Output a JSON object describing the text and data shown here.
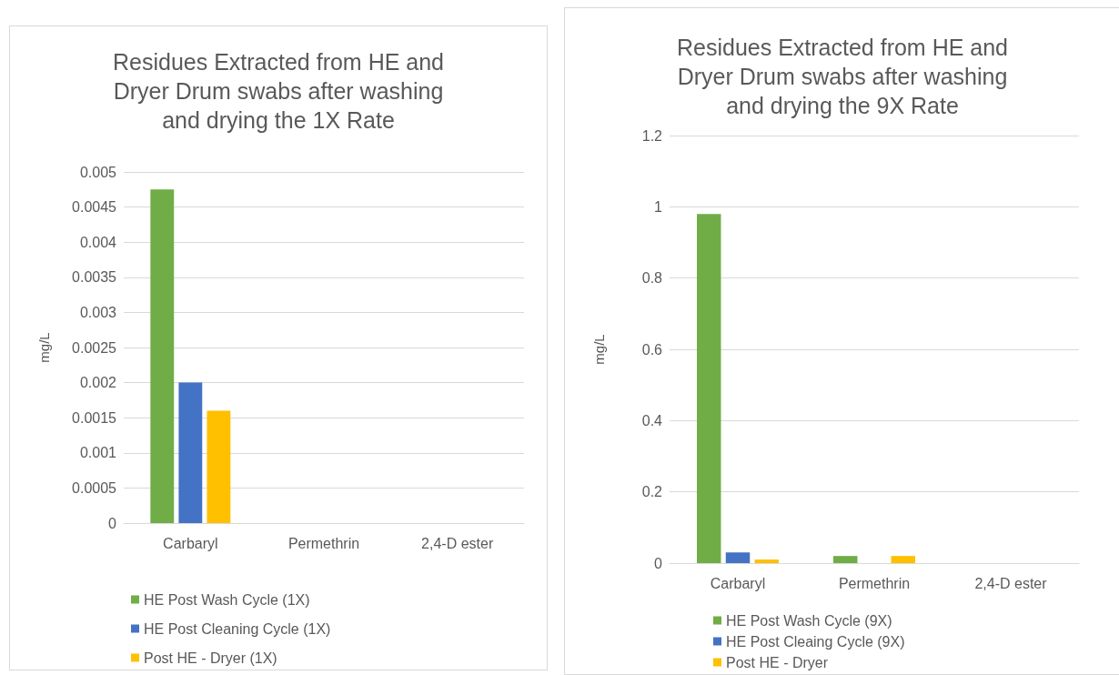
{
  "chart_data": [
    {
      "type": "bar",
      "title": "Residues Extracted from HE and Dryer Drum swabs after washing and drying the 1X Rate",
      "ylabel": "mg/L",
      "categories": [
        "Carbaryl",
        "Permethrin",
        "2,4-D ester"
      ],
      "series": [
        {
          "name": "HE Post Wash Cycle (1X)",
          "color": "#70ad47",
          "values": [
            0.00475,
            0,
            0
          ]
        },
        {
          "name": "HE Post Cleaning Cycle (1X)",
          "color": "#4472c4",
          "values": [
            0.002,
            0,
            0
          ]
        },
        {
          "name": "Post HE - Dryer (1X)",
          "color": "#ffc000",
          "values": [
            0.0016,
            0,
            0
          ]
        }
      ],
      "ylim": [
        0,
        0.005
      ],
      "yticks": [
        0,
        0.0005,
        0.001,
        0.0015,
        0.002,
        0.0025,
        0.003,
        0.0035,
        0.004,
        0.0045,
        0.005
      ],
      "grid": "y",
      "legend": "bottom"
    },
    {
      "type": "bar",
      "title": "Residues Extracted from HE and Dryer Drum swabs after washing and drying the 9X Rate",
      "ylabel": "mg/L",
      "categories": [
        "Carbaryl",
        "Permethrin",
        "2,4-D ester"
      ],
      "series": [
        {
          "name": "HE Post Wash Cycle (9X)",
          "color": "#70ad47",
          "values": [
            0.98,
            0.02,
            0
          ]
        },
        {
          "name": "HE Post Cleaing Cycle (9X)",
          "color": "#4472c4",
          "values": [
            0.03,
            0,
            0
          ]
        },
        {
          "name": "Post HE - Dryer",
          "color": "#ffc000",
          "values": [
            0.01,
            0.02,
            0
          ]
        }
      ],
      "ylim": [
        0,
        1.2
      ],
      "yticks": [
        0,
        0.2,
        0.4,
        0.6,
        0.8,
        1,
        1.2
      ],
      "grid": "y",
      "legend": "bottom"
    }
  ]
}
